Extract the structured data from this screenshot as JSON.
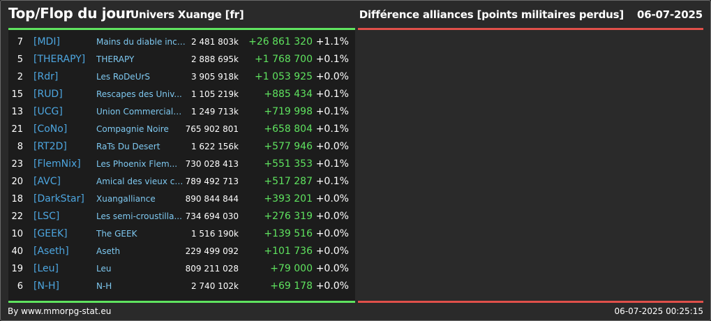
{
  "header": {
    "title": "Top/Flop du jour",
    "universe": "Univers Xuange [fr]",
    "category": "Différence alliances [points militaires perdus]",
    "date": "06-07-2025"
  },
  "colors": {
    "top_accent": "#5fe35f",
    "flop_accent": "#e0504a",
    "tag": "#4da6e0",
    "name": "#7ec8f0",
    "positive": "#5fe35f"
  },
  "top_rows": [
    {
      "rank": "7",
      "tag": "[MDI]",
      "name": "Mains du diable inco...",
      "points": "2 481 803k",
      "diff": "+26 861 320",
      "pct": "+1.1%"
    },
    {
      "rank": "5",
      "tag": "[THERAPY]",
      "name": "THERAPY",
      "points": "2 888 695k",
      "diff": "+1 768 700",
      "pct": "+0.1%"
    },
    {
      "rank": "2",
      "tag": "[Rdr]",
      "name": "Les RoDeUrS",
      "points": "3 905 918k",
      "diff": "+1 053 925",
      "pct": "+0.0%"
    },
    {
      "rank": "15",
      "tag": "[RUD]",
      "name": "Rescapes des Univ...",
      "points": "1 105 219k",
      "diff": "+885 434",
      "pct": "+0.1%"
    },
    {
      "rank": "13",
      "tag": "[UCG]",
      "name": "Union Commerciale...",
      "points": "1 249 713k",
      "diff": "+719 998",
      "pct": "+0.1%"
    },
    {
      "rank": "21",
      "tag": "[CoNo]",
      "name": "Compagnie Noire",
      "points": "765 902 801",
      "diff": "+658 804",
      "pct": "+0.1%"
    },
    {
      "rank": "8",
      "tag": "[RT2D]",
      "name": "RaTs Du Desert",
      "points": "1 622 156k",
      "diff": "+577 946",
      "pct": "+0.0%"
    },
    {
      "rank": "23",
      "tag": "[FlemNix]",
      "name": "Les Phoenix Flem...",
      "points": "730 028 413",
      "diff": "+551 353",
      "pct": "+0.1%"
    },
    {
      "rank": "20",
      "tag": "[AVC]",
      "name": "Amical des vieux co...",
      "points": "789 492 713",
      "diff": "+517 287",
      "pct": "+0.1%"
    },
    {
      "rank": "18",
      "tag": "[DarkStar]",
      "name": "Xuangalliance",
      "points": "890 844 844",
      "diff": "+393 201",
      "pct": "+0.0%"
    },
    {
      "rank": "22",
      "tag": "[LSC]",
      "name": "Les semi-croustilla...",
      "points": "734 694 030",
      "diff": "+276 319",
      "pct": "+0.0%"
    },
    {
      "rank": "10",
      "tag": "[GEEK]",
      "name": "The GEEK",
      "points": "1 516 190k",
      "diff": "+139 516",
      "pct": "+0.0%"
    },
    {
      "rank": "40",
      "tag": "[Aseth]",
      "name": "Aseth",
      "points": "229 499 092",
      "diff": "+101 736",
      "pct": "+0.0%"
    },
    {
      "rank": "19",
      "tag": "[Leu]",
      "name": "Leu",
      "points": "809 211 028",
      "diff": "+79 000",
      "pct": "+0.0%"
    },
    {
      "rank": "6",
      "tag": "[N-H]",
      "name": "N-H",
      "points": "2 740 102k",
      "diff": "+69 178",
      "pct": "+0.0%"
    }
  ],
  "flop_rows": [],
  "footer": {
    "credit": "By www.mmorpg-stat.eu",
    "timestamp": "06-07-2025 00:25:15"
  }
}
